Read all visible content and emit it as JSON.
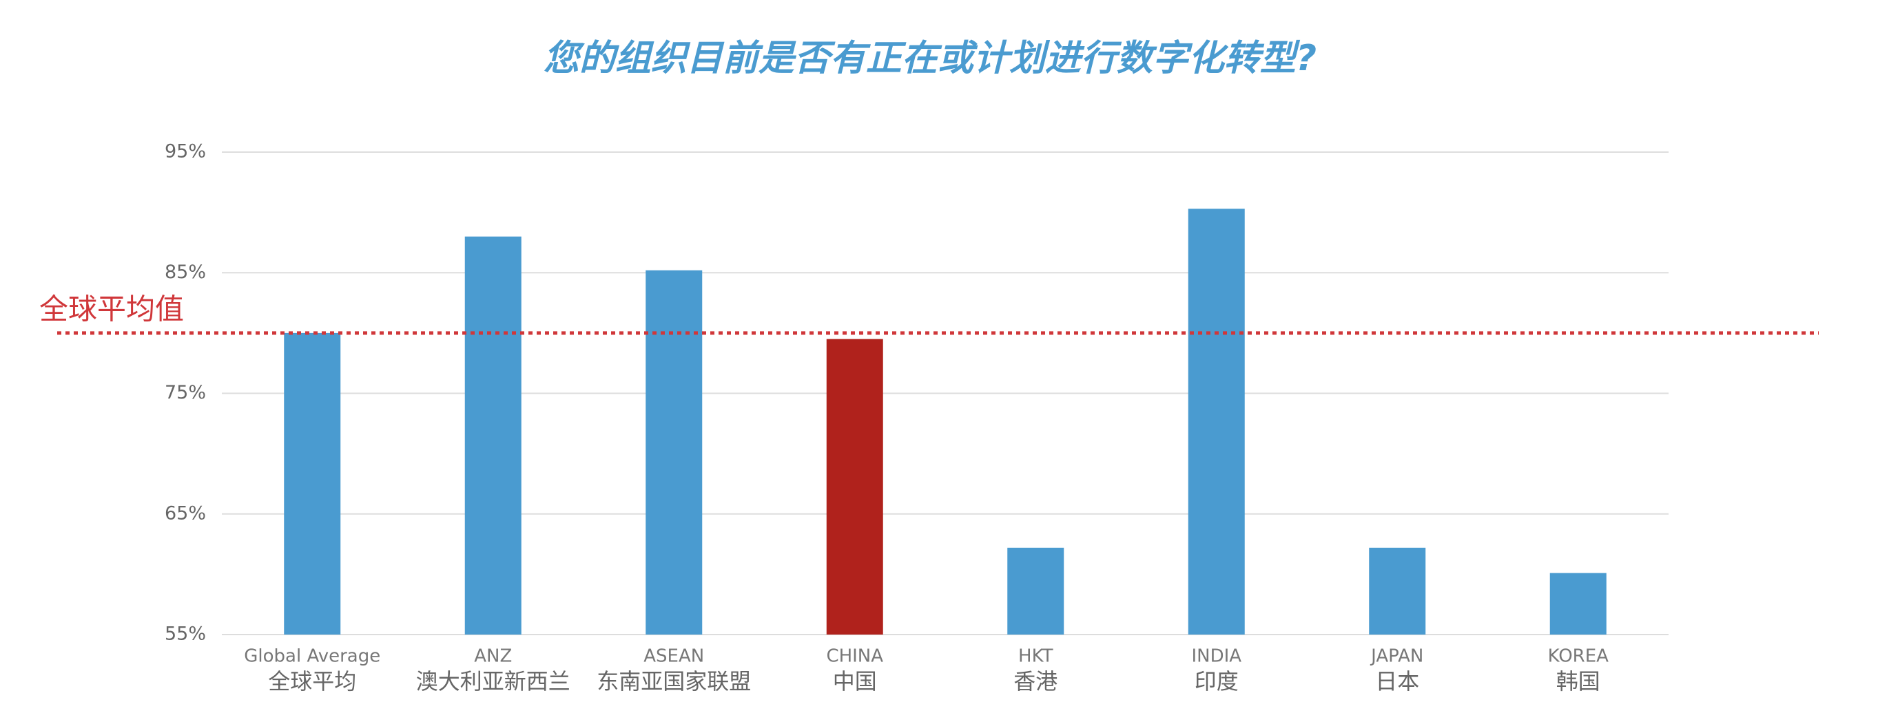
{
  "chart_data": {
    "type": "bar",
    "title": "您的组织目前是否有正在或计划进行数字化转型?",
    "categories": [
      "Global Average",
      "ANZ",
      "ASEAN",
      "CHINA",
      "HKT",
      "INDIA",
      "JAPAN",
      "KOREA"
    ],
    "categories_cn": [
      "全球平均",
      "澳大利亚新西兰",
      "东南亚国家联盟",
      "中国",
      "香港",
      "印度",
      "日本",
      "韩国"
    ],
    "values": [
      80,
      88,
      85.2,
      79.5,
      62.2,
      90.3,
      62.2,
      60.1
    ],
    "colors": [
      "#4a9bd0",
      "#4a9bd0",
      "#4a9bd0",
      "#b0221c",
      "#4a9bd0",
      "#4a9bd0",
      "#4a9bd0",
      "#4a9bd0"
    ],
    "ylim": [
      55,
      95
    ],
    "yticks": [
      {
        "value": 55,
        "label": "55%"
      },
      {
        "value": 65,
        "label": "65%"
      },
      {
        "value": 75,
        "label": "75%"
      },
      {
        "value": 85,
        "label": "85%"
      },
      {
        "value": 95,
        "label": "95%"
      }
    ],
    "grid": true,
    "reference_line": {
      "value": 80,
      "label": "全球平均值",
      "color": "#d0373a"
    }
  }
}
